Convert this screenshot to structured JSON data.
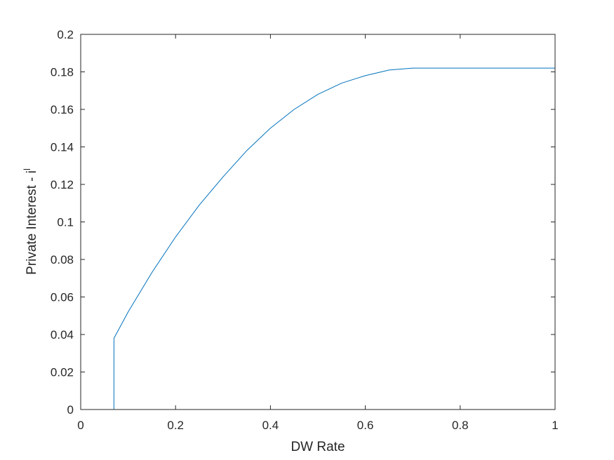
{
  "chart_data": {
    "type": "line",
    "title": "",
    "xlabel": "DW Rate",
    "ylabel": "Private Interest - i",
    "ylabel_superscript": "l",
    "xlim": [
      0,
      1
    ],
    "ylim": [
      0,
      0.2
    ],
    "x_ticks": [
      "0",
      "0.2",
      "0.4",
      "0.6",
      "0.8",
      "1"
    ],
    "y_ticks": [
      "0",
      "0.02",
      "0.04",
      "0.06",
      "0.08",
      "0.1",
      "0.12",
      "0.14",
      "0.16",
      "0.18",
      "0.2"
    ],
    "grid": false,
    "line_color": "#0072bd",
    "axis_color": "#262626",
    "series": [
      {
        "x": [
          0,
          0.05,
          0.07,
          0.0701,
          0.1,
          0.15,
          0.2,
          0.25,
          0.3,
          0.35,
          0.4,
          0.45,
          0.5,
          0.55,
          0.6,
          0.65,
          0.7,
          0.75,
          0.8,
          0.9,
          1.0
        ],
        "y": [
          0,
          0,
          0,
          0.038,
          0.052,
          0.073,
          0.092,
          0.109,
          0.124,
          0.138,
          0.15,
          0.16,
          0.168,
          0.174,
          0.178,
          0.181,
          0.182,
          0.182,
          0.182,
          0.182,
          0.182
        ]
      }
    ]
  }
}
